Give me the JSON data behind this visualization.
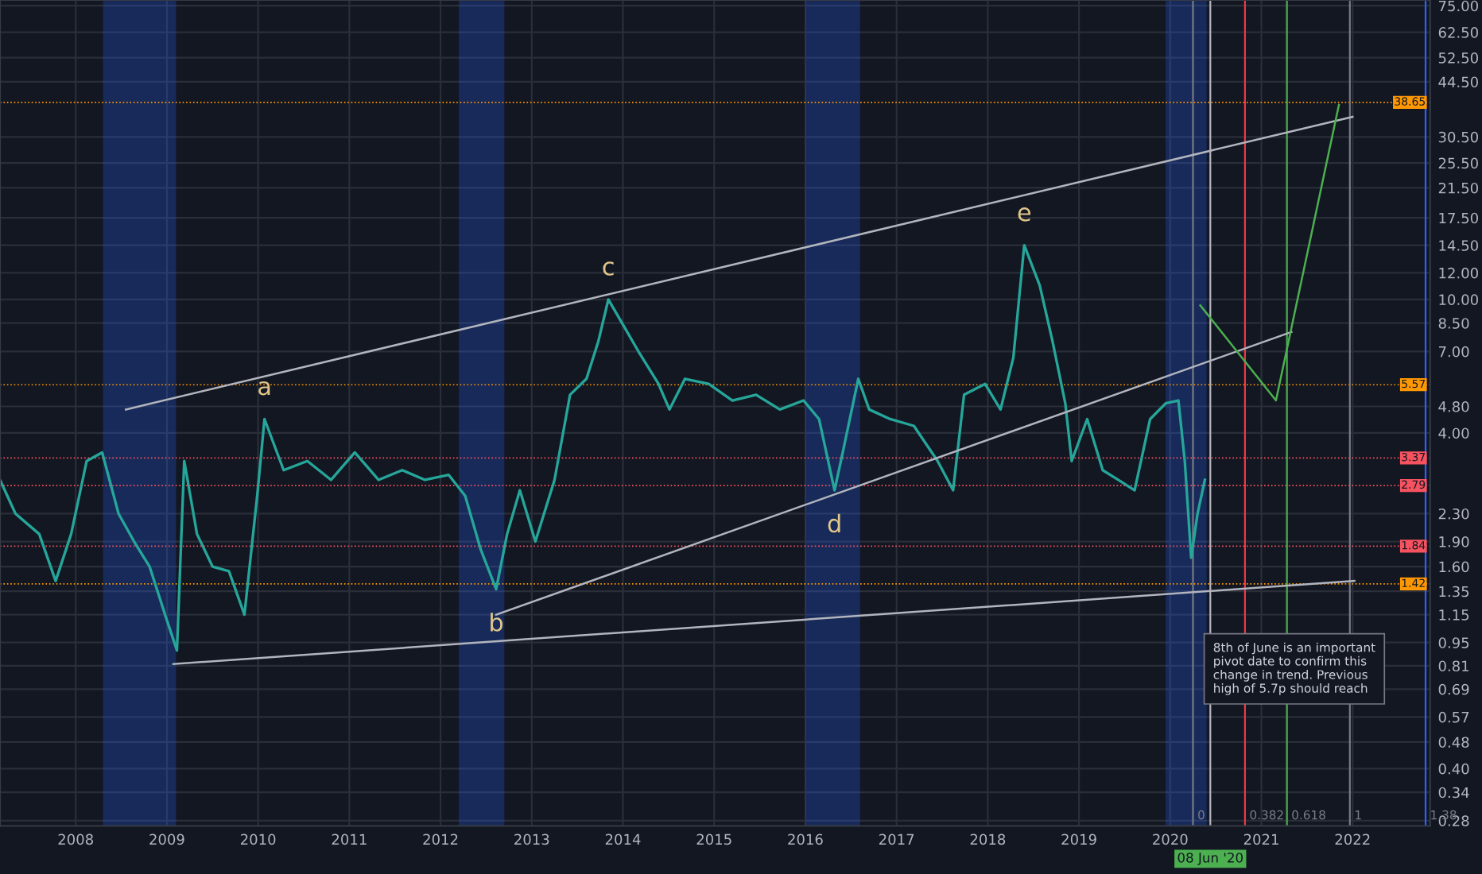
{
  "chart_data": {
    "type": "line",
    "log": "y",
    "grid": true,
    "legend": false,
    "xlim": [
      2007.17,
      2022.85
    ],
    "ylim": [
      0.27,
      78
    ],
    "xticks": [
      2008,
      2009,
      2010,
      2011,
      2012,
      2013,
      2014,
      2015,
      2016,
      2017,
      2018,
      2019,
      2020,
      2021,
      2022
    ],
    "yticks": [
      {
        "value": 0.28,
        "label": "0.28"
      },
      {
        "value": 0.34,
        "label": "0.34"
      },
      {
        "value": 0.4,
        "label": "0.40"
      },
      {
        "value": 0.48,
        "label": "0.48"
      },
      {
        "value": 0.57,
        "label": "0.57"
      },
      {
        "value": 0.69,
        "label": "0.69"
      },
      {
        "value": 0.81,
        "label": "0.81"
      },
      {
        "value": 0.95,
        "label": "0.95"
      },
      {
        "value": 1.15,
        "label": "1.15"
      },
      {
        "value": 1.35,
        "label": "1.35"
      },
      {
        "value": 1.6,
        "label": "1.60"
      },
      {
        "value": 1.9,
        "label": "1.90"
      },
      {
        "value": 2.3,
        "label": "2.30"
      },
      {
        "value": 4.0,
        "label": "4.00"
      },
      {
        "value": 4.8,
        "label": "4.80"
      },
      {
        "value": 7.0,
        "label": "7.00"
      },
      {
        "value": 8.5,
        "label": "8.50"
      },
      {
        "value": 10.0,
        "label": "10.00"
      },
      {
        "value": 12.0,
        "label": "12.00"
      },
      {
        "value": 14.5,
        "label": "14.50"
      },
      {
        "value": 17.5,
        "label": "17.50"
      },
      {
        "value": 21.5,
        "label": "21.50"
      },
      {
        "value": 25.5,
        "label": "25.50"
      },
      {
        "value": 30.5,
        "label": "30.50"
      },
      {
        "value": 44.5,
        "label": "44.50"
      },
      {
        "value": 52.5,
        "label": "52.50"
      },
      {
        "value": 62.5,
        "label": "62.50"
      },
      {
        "value": 75.0,
        "label": "75.00"
      }
    ],
    "series": [
      {
        "color": "#26a69a",
        "x": [
          2007.17,
          2007.34,
          2007.6,
          2007.78,
          2007.95,
          2008.12,
          2008.29,
          2008.47,
          2008.64,
          2008.81,
          2008.98,
          2009.11,
          2009.19,
          2009.33,
          2009.5,
          2009.68,
          2009.85,
          2009.99,
          2010.07,
          2010.28,
          2010.54,
          2010.8,
          2011.06,
          2011.32,
          2011.58,
          2011.83,
          2012.09,
          2012.27,
          2012.44,
          2012.61,
          2012.73,
          2012.87,
          2013.04,
          2013.25,
          2013.42,
          2013.6,
          2013.73,
          2013.84,
          2013.99,
          2014.17,
          2014.39,
          2014.51,
          2014.68,
          2014.94,
          2015.2,
          2015.46,
          2015.72,
          2015.98,
          2016.15,
          2016.32,
          2016.41,
          2016.58,
          2016.7,
          2016.93,
          2017.19,
          2017.45,
          2017.62,
          2017.74,
          2017.97,
          2018.14,
          2018.28,
          2018.4,
          2018.57,
          2018.71,
          2018.85,
          2018.92,
          2019.09,
          2019.26,
          2019.43,
          2019.61,
          2019.78,
          2019.95,
          2020.09,
          2020.16,
          2020.23,
          2020.3,
          2020.38
        ],
        "values": [
          2.9,
          2.3,
          2.0,
          1.45,
          2.0,
          3.3,
          3.5,
          2.3,
          1.9,
          1.6,
          1.15,
          0.9,
          3.3,
          2.0,
          1.6,
          1.55,
          1.15,
          2.6,
          4.4,
          3.1,
          3.3,
          2.9,
          3.5,
          2.9,
          3.1,
          2.9,
          3.0,
          2.6,
          1.8,
          1.37,
          2.0,
          2.7,
          1.9,
          2.9,
          5.2,
          5.8,
          7.5,
          10,
          8.5,
          7.0,
          5.6,
          4.7,
          5.8,
          5.6,
          5.0,
          5.2,
          4.7,
          5.0,
          4.4,
          2.7,
          3.5,
          5.8,
          4.7,
          4.4,
          4.2,
          3.3,
          2.7,
          5.2,
          5.6,
          4.7,
          6.7,
          14.5,
          11,
          7.5,
          4.9,
          3.3,
          4.4,
          3.1,
          2.9,
          2.7,
          4.4,
          4.9,
          5.0,
          3.3,
          1.7,
          2.3,
          2.9
        ]
      },
      {
        "type": "line",
        "color": "#b2b5be",
        "x": [
          2008.55,
          2022.0
        ],
        "values": [
          4.7,
          35
        ]
      },
      {
        "type": "line",
        "color": "#b2b5be",
        "x": [
          2009.07,
          2022.02
        ],
        "values": [
          0.82,
          1.45
        ]
      },
      {
        "type": "line",
        "color": "#b2b5be",
        "x": [
          2012.61,
          2021.33
        ],
        "values": [
          1.15,
          8
        ]
      },
      {
        "type": "line",
        "color": "#4caf50",
        "x": [
          2020.33,
          2021.16,
          2021.85
        ],
        "values": [
          9.6,
          5.0,
          38
        ]
      }
    ],
    "bands": [
      {
        "axis": "x",
        "from": 2008.3,
        "to": 2009.1,
        "color": "#2962ff"
      },
      {
        "axis": "x",
        "from": 2012.2,
        "to": 2012.7,
        "color": "#2962ff"
      },
      {
        "axis": "x",
        "from": 2016.0,
        "to": 2016.6,
        "color": "#2962ff"
      },
      {
        "axis": "x",
        "from": 2019.95,
        "to": 2020.4,
        "color": "#2962ff"
      }
    ],
    "ref_lines": [
      {
        "axis": "y",
        "value": 38.65,
        "label": "38.65",
        "color": "#ff9800"
      },
      {
        "axis": "y",
        "value": 5.57,
        "label": "5.57",
        "color": "#ff9800"
      },
      {
        "axis": "y",
        "value": 3.37,
        "label": "3.37",
        "color": "#f7525f"
      },
      {
        "axis": "y",
        "value": 2.79,
        "label": "2.79",
        "color": "#f7525f"
      },
      {
        "axis": "y",
        "value": 1.84,
        "label": "1.84",
        "color": "#f7525f"
      },
      {
        "axis": "y",
        "value": 1.42,
        "label": "1.42",
        "color": "#ff9800"
      },
      {
        "axis": "x",
        "value": 2020.25,
        "color": "#787b86"
      },
      {
        "axis": "x",
        "value": 2020.82,
        "color": "#f23645"
      },
      {
        "axis": "x",
        "value": 2021.28,
        "color": "#4caf50"
      },
      {
        "axis": "x",
        "value": 2021.97,
        "color": "#787b86"
      },
      {
        "axis": "x",
        "value": 2022.8,
        "color": "#2962ff"
      },
      {
        "axis": "x",
        "value": 2020.44,
        "label": "08 Jun '20",
        "color": "#b2b5be"
      }
    ],
    "annotations": [
      {
        "text": "a",
        "x": 2010.07,
        "y": 4.4
      },
      {
        "text": "b",
        "x": 2012.61,
        "y": 1.37
      },
      {
        "text": "c",
        "x": 2013.84,
        "y": 10
      },
      {
        "text": "d",
        "x": 2016.32,
        "y": 2.7
      },
      {
        "text": "e",
        "x": 2018.4,
        "y": 14.5
      },
      {
        "text": "0",
        "x": 2020.25,
        "y": 0.27
      },
      {
        "text": "0.382",
        "x": 2020.82,
        "y": 0.27
      },
      {
        "text": "0.618",
        "x": 2021.28,
        "y": 0.27
      },
      {
        "text": "1",
        "x": 2021.97,
        "y": 0.27
      },
      {
        "text": "1.38",
        "x": 2022.8,
        "y": 0.27
      },
      {
        "text": "8th of June is an important\npivot date to confirm this\nchange in trend. Previous\nhigh of 5.7p should reach",
        "x": 2020.47,
        "y": 0.95
      }
    ]
  }
}
